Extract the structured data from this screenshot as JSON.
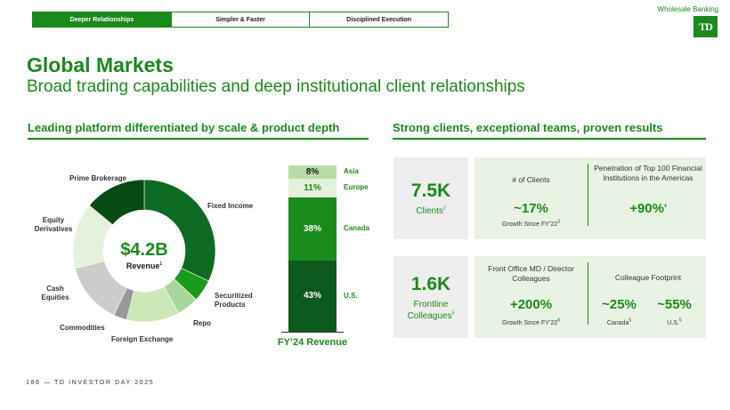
{
  "tabs": [
    {
      "label": "Deeper Relationships",
      "active": true
    },
    {
      "label": "Simpler & Faster",
      "active": false
    },
    {
      "label": "Disciplined Execution",
      "active": false
    }
  ],
  "brand": {
    "top_right": "Wholesale Banking",
    "logo": "TD",
    "color": "#1a8a1a"
  },
  "title": "Global Markets",
  "subtitle": "Broad trading capabilities and deep institutional client relationships",
  "left_section": {
    "heading": "Leading platform differentiated by scale & product depth",
    "donut": {
      "center_value": "$4.2B",
      "center_label": "Revenue",
      "center_label_footnote": "1",
      "segments": [
        {
          "label": "Fixed Income",
          "share": 0.32,
          "color": "#0d6a22"
        },
        {
          "label": "Securitized Products",
          "share": 0.05,
          "color": "#1a9a1a"
        },
        {
          "label": "Repo",
          "share": 0.05,
          "color": "#a9d69b"
        },
        {
          "label": "Foreign Exchange",
          "share": 0.12,
          "color": "#cde8b8"
        },
        {
          "label": "Commodities",
          "share": 0.03,
          "color": "#999999"
        },
        {
          "label": "Cash Equities",
          "share": 0.14,
          "color": "#cccccc"
        },
        {
          "label": "Equity Derivatives",
          "share": 0.15,
          "color": "#e4f1dc"
        },
        {
          "label": "Prime Brokerage",
          "share": 0.14,
          "color": "#0a4a14"
        }
      ]
    },
    "stacked_bar": {
      "caption": "FY’24 Revenue",
      "segments": [
        {
          "label": "Asia",
          "value": "8%",
          "share": 8,
          "color": "#b7dca8",
          "text_color": "#1a1a1a"
        },
        {
          "label": "Europe",
          "value": "11%",
          "share": 11,
          "color": "#e4f1dc",
          "text_color": "#1a8a1a"
        },
        {
          "label": "Canada",
          "value": "38%",
          "share": 38,
          "color": "#1a8a1a",
          "text_color": "#ffffff"
        },
        {
          "label": "U.S.",
          "value": "43%",
          "share": 43,
          "color": "#0d5a1f",
          "text_color": "#ffffff"
        }
      ]
    }
  },
  "right_section": {
    "heading": "Strong clients, exceptional teams, proven results",
    "clients": {
      "big": "7.5K",
      "caption": "Clients",
      "caption_footnote": "2",
      "left_label": "# of Clients",
      "left_value": "~17%",
      "left_note": "Growth Since FY’22",
      "left_note_footnote": "3",
      "right_label": "Penetration of Top 100 Financial Institutions in the Americas",
      "right_value": "+90%",
      "right_value_footnote": "4"
    },
    "colleagues": {
      "big": "1.6K",
      "caption_line1": "Frontline",
      "caption_line2": "Colleagues",
      "caption_footnote": "5",
      "left_label": "Front Office MD / Director Colleagues",
      "left_value": "+200%",
      "left_note": "Growth Since FY’22",
      "left_note_footnote": "6",
      "right_label": "Colleague Footprint",
      "canada_value": "~25%",
      "canada_label": "Canada",
      "canada_footnote": "5",
      "us_value": "~55%",
      "us_label": "U.S.",
      "us_footnote": "5"
    }
  },
  "footer": "186 — TD INVESTOR DAY 2025"
}
